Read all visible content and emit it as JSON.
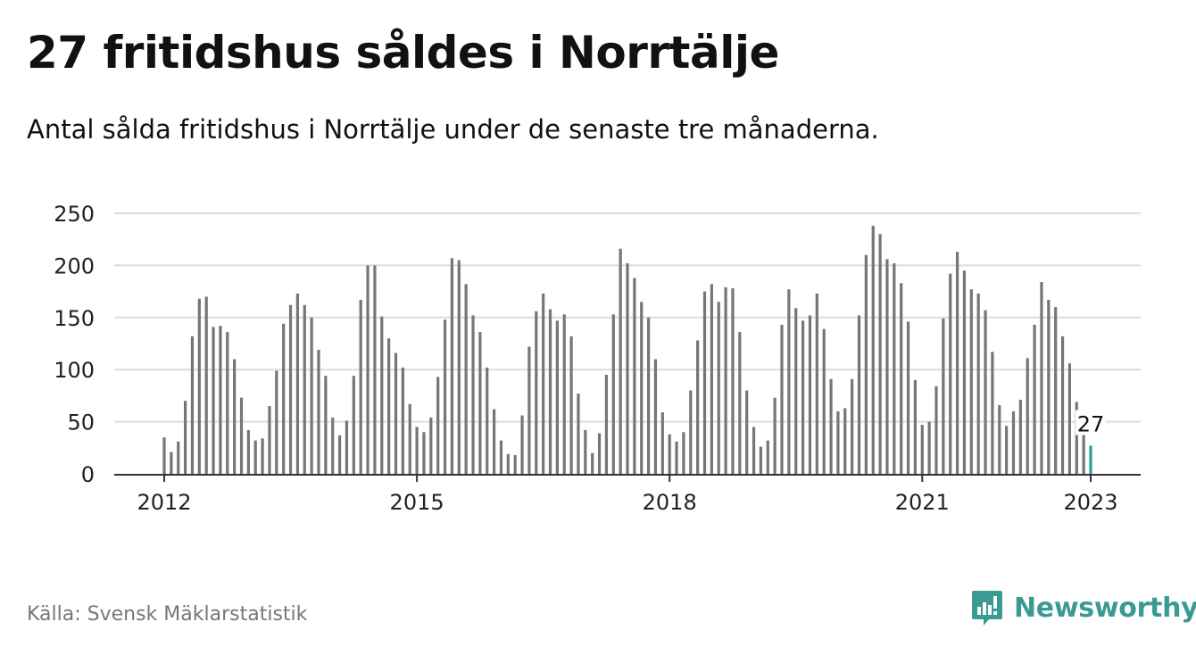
{
  "header": {
    "title": "27 fritidshus såldes i Norrtälje",
    "subtitle": "Antal sålda fritidshus i Norrtälje under de senaste tre månaderna."
  },
  "footer": {
    "source": "Källa: Svensk Mäklarstatistik",
    "brand": "Newsworthy"
  },
  "colors": {
    "bar": "#75757a",
    "highlight": "#2aa198",
    "grid": "#dcdcdc",
    "axis": "#333333",
    "brand": "#3b9a93"
  },
  "icons": {
    "brand": "newsworthy-logo-icon"
  },
  "chart_data": {
    "type": "bar",
    "title": "27 fritidshus såldes i Norrtälje",
    "xlabel": "",
    "ylabel": "",
    "ylim": [
      0,
      250
    ],
    "yticks": [
      0,
      50,
      100,
      150,
      200,
      250
    ],
    "xticks": [
      {
        "label": "2012",
        "date": "2012-01"
      },
      {
        "label": "2015",
        "date": "2015-01"
      },
      {
        "label": "2018",
        "date": "2018-01"
      },
      {
        "label": "2021",
        "date": "2021-01"
      },
      {
        "label": "2023",
        "date": "2023-01"
      }
    ],
    "grid": true,
    "start": "2012-01",
    "end": "2023-01",
    "values": [
      35,
      21,
      31,
      70,
      132,
      168,
      170,
      141,
      142,
      136,
      110,
      73,
      42,
      32,
      34,
      65,
      99,
      144,
      162,
      173,
      162,
      150,
      119,
      94,
      54,
      37,
      51,
      94,
      167,
      200,
      200,
      151,
      130,
      116,
      102,
      67,
      45,
      40,
      54,
      93,
      148,
      207,
      205,
      182,
      152,
      136,
      102,
      62,
      32,
      19,
      18,
      56,
      122,
      156,
      173,
      158,
      147,
      153,
      132,
      77,
      42,
      20,
      39,
      95,
      153,
      216,
      202,
      188,
      165,
      150,
      110,
      59,
      38,
      31,
      40,
      80,
      128,
      175,
      182,
      165,
      179,
      178,
      136,
      80,
      45,
      26,
      32,
      73,
      143,
      177,
      159,
      147,
      152,
      173,
      139,
      91,
      60,
      63,
      91,
      152,
      210,
      238,
      230,
      206,
      202,
      183,
      146,
      90,
      47,
      50,
      84,
      149,
      192,
      213,
      195,
      177,
      173,
      157,
      117,
      66,
      46,
      60,
      71,
      111,
      143,
      184,
      167,
      160,
      132,
      106,
      69,
      38,
      27
    ],
    "highlight_last": true,
    "annotation": "27"
  }
}
